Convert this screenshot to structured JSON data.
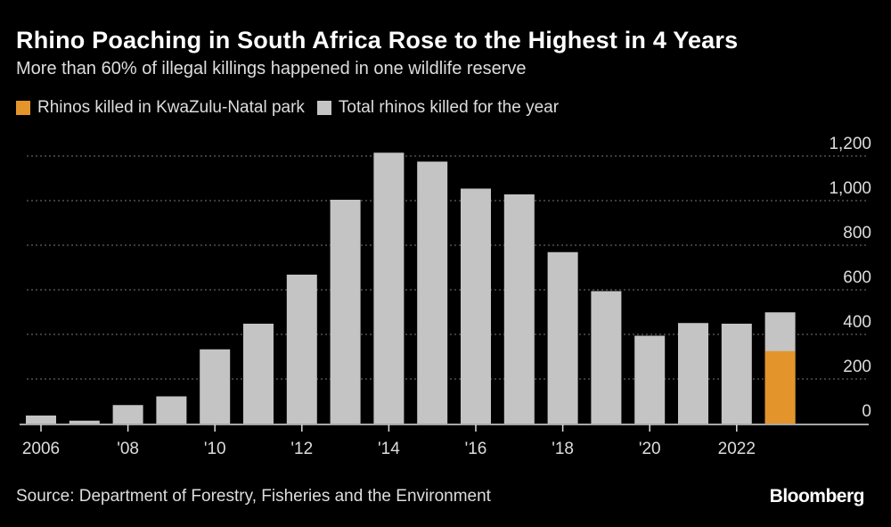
{
  "chart_data": {
    "type": "bar",
    "stacked_overlay": true,
    "title": "Rhino Poaching in South Africa Rose to the Highest in 4 Years",
    "subtitle": "More than 60% of illegal killings happened in one wildlife reserve",
    "categories": [
      2006,
      2007,
      2008,
      2009,
      2010,
      2011,
      2012,
      2013,
      2014,
      2015,
      2016,
      2017,
      2018,
      2019,
      2020,
      2021,
      2022,
      2023
    ],
    "series": [
      {
        "name": "Total rhinos killed for the year",
        "color": "#c4c4c4",
        "values": [
          36,
          13,
          83,
          122,
          333,
          448,
          668,
          1004,
          1215,
          1175,
          1054,
          1028,
          769,
          594,
          394,
          451,
          448,
          499
        ]
      },
      {
        "name": "Rhinos killed in KwaZulu-Natal park",
        "color": "#e3952b",
        "values": [
          null,
          null,
          null,
          null,
          null,
          null,
          null,
          null,
          null,
          null,
          null,
          null,
          null,
          null,
          null,
          null,
          null,
          325
        ]
      }
    ],
    "x_ticks": [
      {
        "year": 2006,
        "label": "2006"
      },
      {
        "year": 2008,
        "label": "'08"
      },
      {
        "year": 2010,
        "label": "'10"
      },
      {
        "year": 2012,
        "label": "'12"
      },
      {
        "year": 2014,
        "label": "'14"
      },
      {
        "year": 2016,
        "label": "'16"
      },
      {
        "year": 2018,
        "label": "'18"
      },
      {
        "year": 2020,
        "label": "'20"
      },
      {
        "year": 2022,
        "label": "2022"
      }
    ],
    "y_ticks": [
      {
        "value": 0,
        "label": "0"
      },
      {
        "value": 200,
        "label": "200"
      },
      {
        "value": 400,
        "label": "400"
      },
      {
        "value": 600,
        "label": "600"
      },
      {
        "value": 800,
        "label": "800"
      },
      {
        "value": 1000,
        "label": "1,000"
      },
      {
        "value": 1200,
        "label": "1,200"
      }
    ],
    "ylim": [
      0,
      1200
    ],
    "y_axis_side": "right",
    "grid": true,
    "legend_placement": "top-left",
    "xlabel": "",
    "ylabel": ""
  },
  "source": "Source: Department of Forestry, Fisheries and the Environment",
  "brand": "Bloomberg"
}
